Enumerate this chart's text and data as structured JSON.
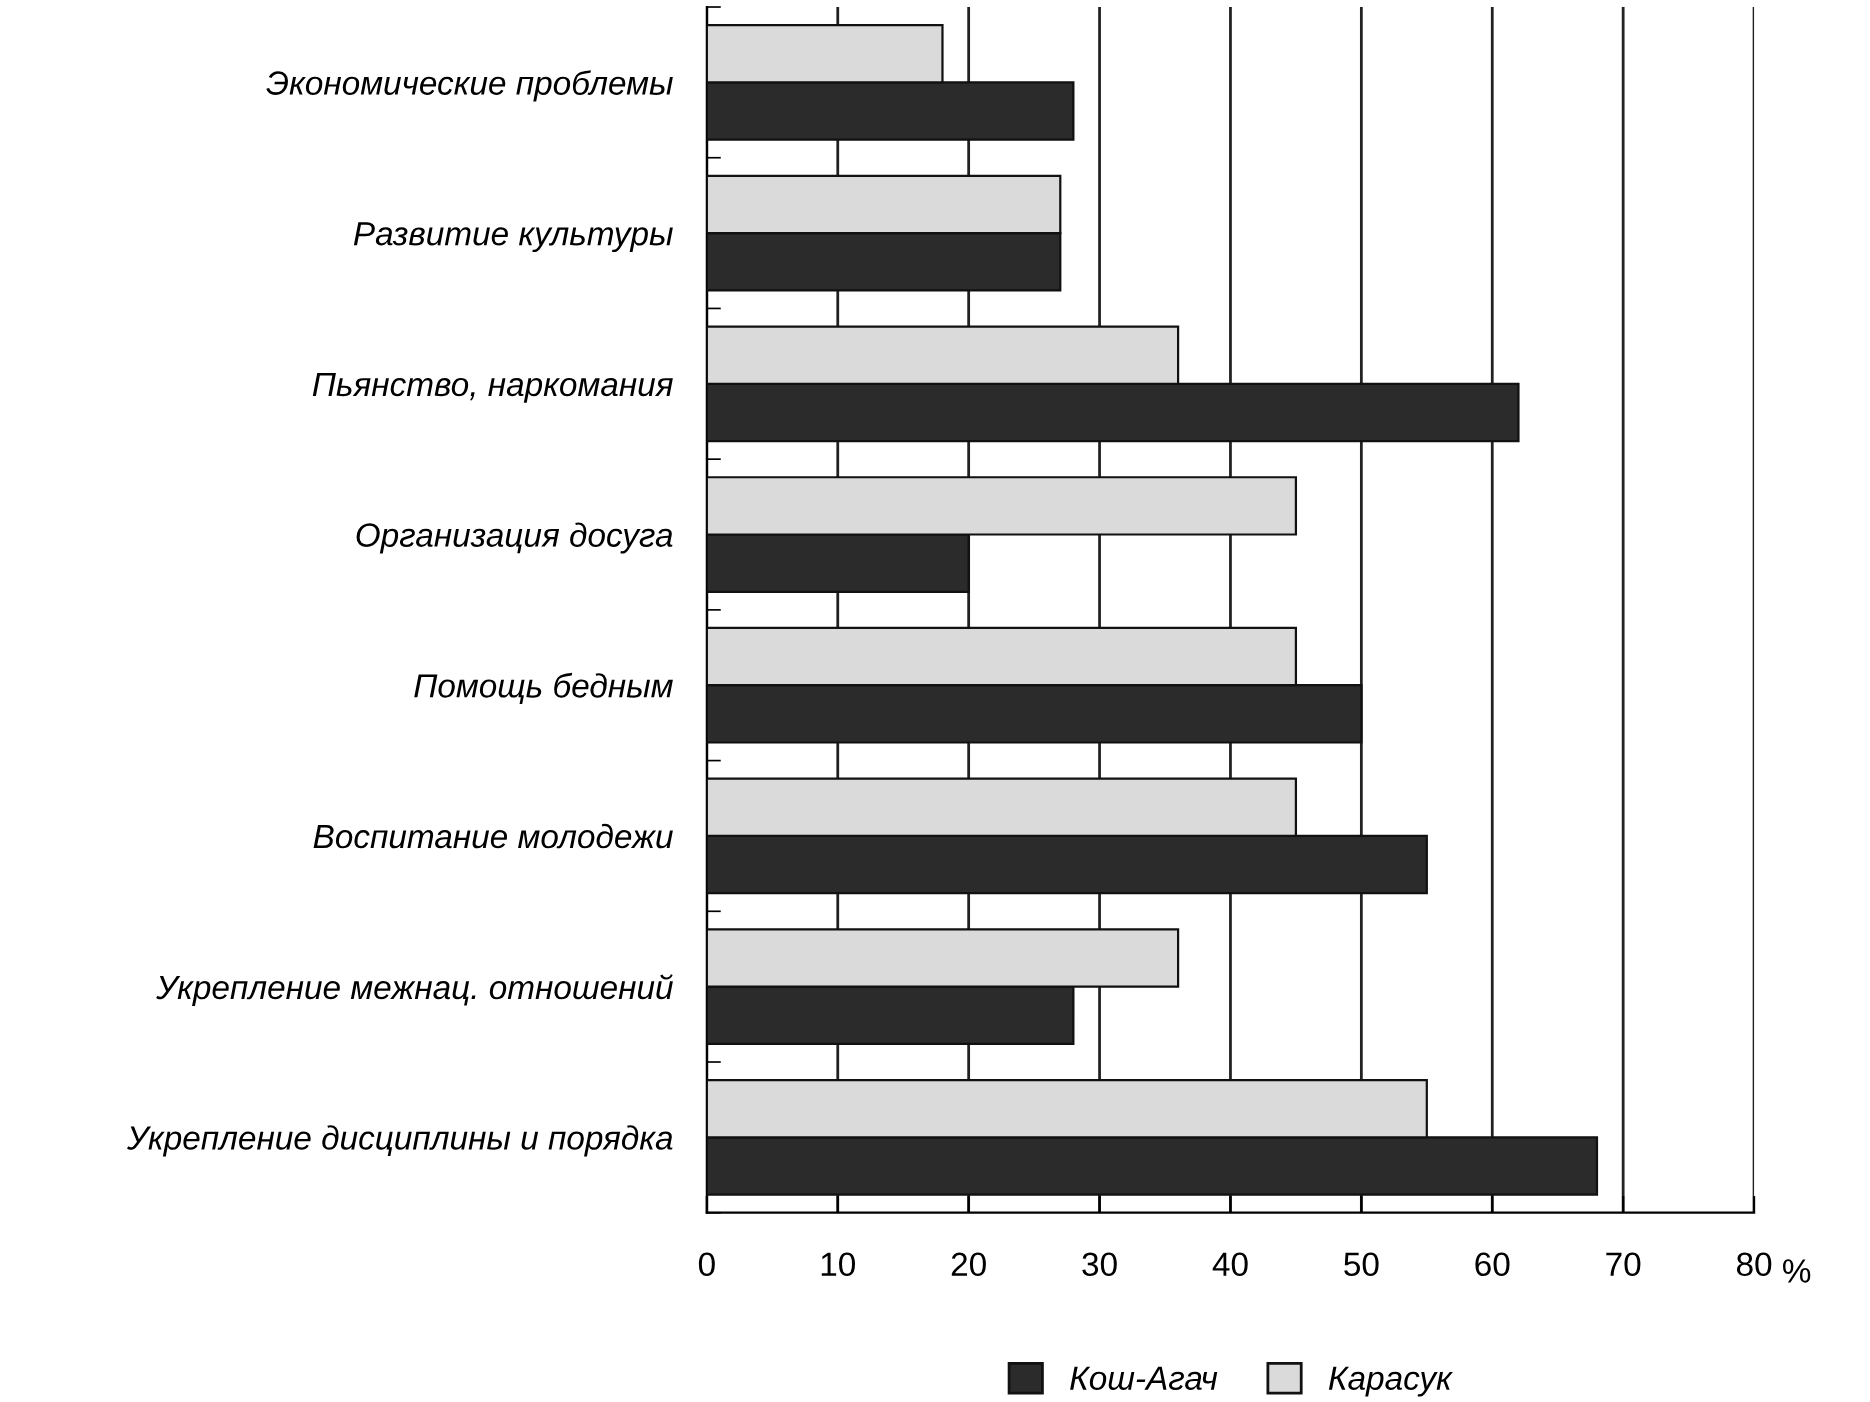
{
  "chart_data": {
    "type": "bar",
    "orientation": "horizontal",
    "categories": [
      "Экономические проблемы",
      "Развитие культуры",
      "Пьянство, наркомания",
      "Организация досуга",
      "Помощь бедным",
      "Воспитание молодежи",
      "Укрепление межнац. отношений",
      "Укрепление дисциплины и порядка"
    ],
    "series": [
      {
        "name": "Кош-Агач",
        "color": "#2b2b2b",
        "values": [
          28,
          27,
          62,
          20,
          50,
          55,
          28,
          68
        ]
      },
      {
        "name": "Карасук",
        "color": "#dadada",
        "values": [
          18,
          27,
          36,
          45,
          45,
          45,
          36,
          55
        ]
      }
    ],
    "xlabel": "%",
    "xlim": [
      0,
      80
    ],
    "xticks": [
      0,
      10,
      20,
      30,
      40,
      50,
      60,
      70,
      80
    ],
    "grid": "x",
    "legend": "bottom"
  }
}
